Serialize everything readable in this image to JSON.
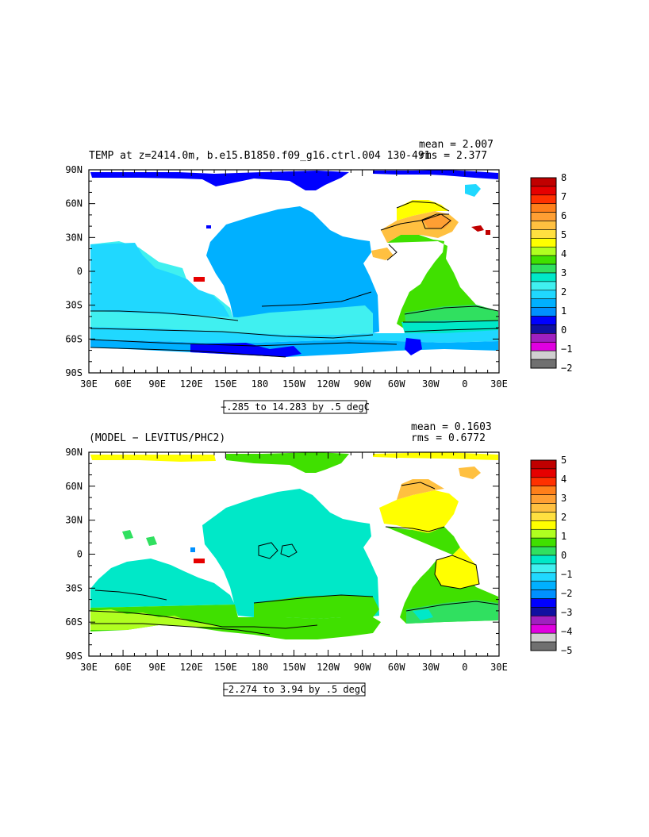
{
  "panels": [
    {
      "title": "TEMP at z=2414.0m, b.e15.B1850.f09_g16.ctrl.004 130-491",
      "mean": "mean = 2.007",
      "rms": "rms = 2.377",
      "range_label": "−.285 to 14.283 by .5 degC",
      "lat_labels": [
        "90N",
        "60N",
        "30N",
        "0",
        "30S",
        "60S",
        "90S"
      ],
      "lon_labels": [
        "30E",
        "60E",
        "90E",
        "120E",
        "150E",
        "180",
        "150W",
        "120W",
        "90W",
        "60W",
        "30W",
        "0",
        "30E"
      ],
      "colorbar": {
        "labels": [
          "8",
          "7",
          "6",
          "5",
          "4",
          "3",
          "2",
          "1",
          "0",
          "−1",
          "−2"
        ],
        "colors": [
          "#c00000",
          "#e60000",
          "#ff3000",
          "#ff7f1a",
          "#ff9f33",
          "#ffc040",
          "#ffe040",
          "#ffff00",
          "#b0ff20",
          "#40e000",
          "#30e060",
          "#00e8c8",
          "#40f0f0",
          "#20d8ff",
          "#00b0ff",
          "#0090ff",
          "#0000ff",
          "#1010a0",
          "#a020c0",
          "#e000e0",
          "#d0d0d0",
          "#707070"
        ]
      }
    },
    {
      "title": "(MODEL − LEVITUS/PHC2)",
      "mean": "mean = 0.1603",
      "rms": "rms = 0.6772",
      "range_label": "−2.274 to 3.94 by .5 degC",
      "lat_labels": [
        "90N",
        "60N",
        "30N",
        "0",
        "30S",
        "60S",
        "90S"
      ],
      "lon_labels": [
        "30E",
        "60E",
        "90E",
        "120E",
        "150E",
        "180",
        "150W",
        "120W",
        "90W",
        "60W",
        "30W",
        "0",
        "30E"
      ],
      "colorbar": {
        "labels": [
          "5",
          "4",
          "3",
          "2",
          "1",
          "0",
          "−1",
          "−2",
          "−3",
          "−4",
          "−5"
        ],
        "colors": [
          "#c00000",
          "#e60000",
          "#ff3000",
          "#ff7f1a",
          "#ff9f33",
          "#ffc040",
          "#ffe040",
          "#ffff00",
          "#b0ff20",
          "#40e000",
          "#30e060",
          "#00e8c8",
          "#40f0f0",
          "#20d8ff",
          "#00b0ff",
          "#0090ff",
          "#0000ff",
          "#1010a0",
          "#a020c0",
          "#e000e0",
          "#d0d0d0",
          "#707070"
        ]
      }
    }
  ]
}
